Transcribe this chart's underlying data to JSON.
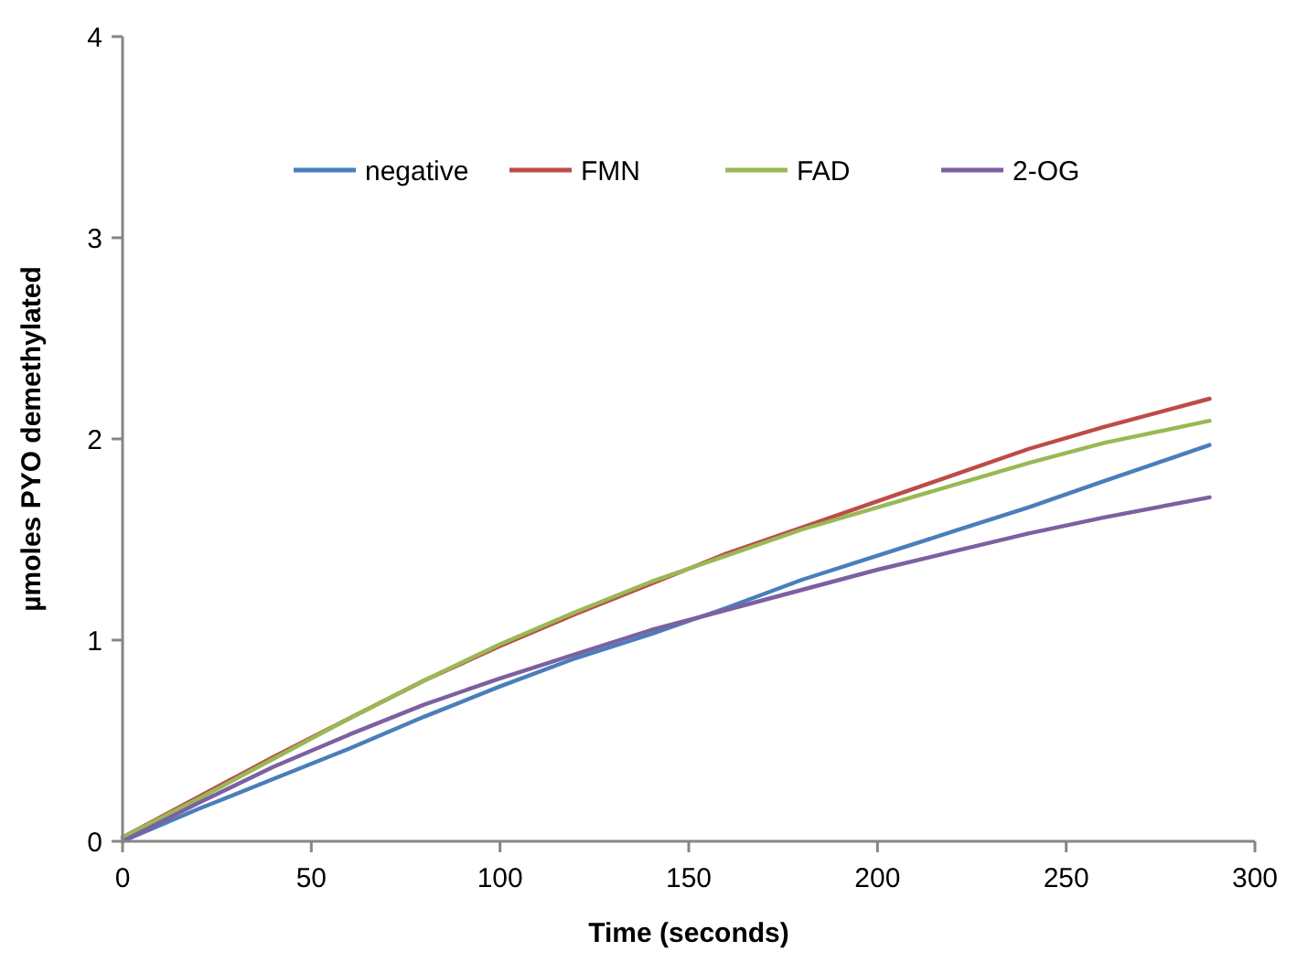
{
  "chart_data": {
    "type": "line",
    "xlabel": "Time (seconds)",
    "ylabel": "µmoles PYO demethylated",
    "x": [
      0,
      20,
      40,
      60,
      80,
      100,
      120,
      140,
      160,
      180,
      200,
      220,
      240,
      260,
      288
    ],
    "xlim": [
      0,
      300
    ],
    "xticks": [
      0,
      50,
      100,
      150,
      200,
      250,
      300
    ],
    "ylim": [
      0,
      4
    ],
    "yticks": [
      0,
      1,
      2,
      3,
      4
    ],
    "grid": false,
    "legend": "top",
    "marker": "none",
    "line_style": "solid",
    "series": [
      {
        "name": "negative",
        "color": "#4a7ebb",
        "values": [
          0,
          0.16,
          0.31,
          0.46,
          0.62,
          0.77,
          0.91,
          1.03,
          1.16,
          1.3,
          1.42,
          1.54,
          1.66,
          1.79,
          1.97
        ]
      },
      {
        "name": "FMN",
        "color": "#be4b48",
        "values": [
          0.02,
          0.22,
          0.42,
          0.61,
          0.8,
          0.97,
          1.13,
          1.28,
          1.43,
          1.56,
          1.69,
          1.82,
          1.95,
          2.06,
          2.2
        ]
      },
      {
        "name": "FAD",
        "color": "#98b954",
        "values": [
          0.02,
          0.21,
          0.41,
          0.61,
          0.8,
          0.98,
          1.14,
          1.29,
          1.42,
          1.55,
          1.66,
          1.77,
          1.88,
          1.98,
          2.09
        ]
      },
      {
        "name": "2-OG",
        "color": "#7d60a0",
        "values": [
          0,
          0.19,
          0.37,
          0.53,
          0.68,
          0.81,
          0.93,
          1.05,
          1.15,
          1.25,
          1.35,
          1.44,
          1.53,
          1.61,
          1.71
        ]
      }
    ]
  }
}
